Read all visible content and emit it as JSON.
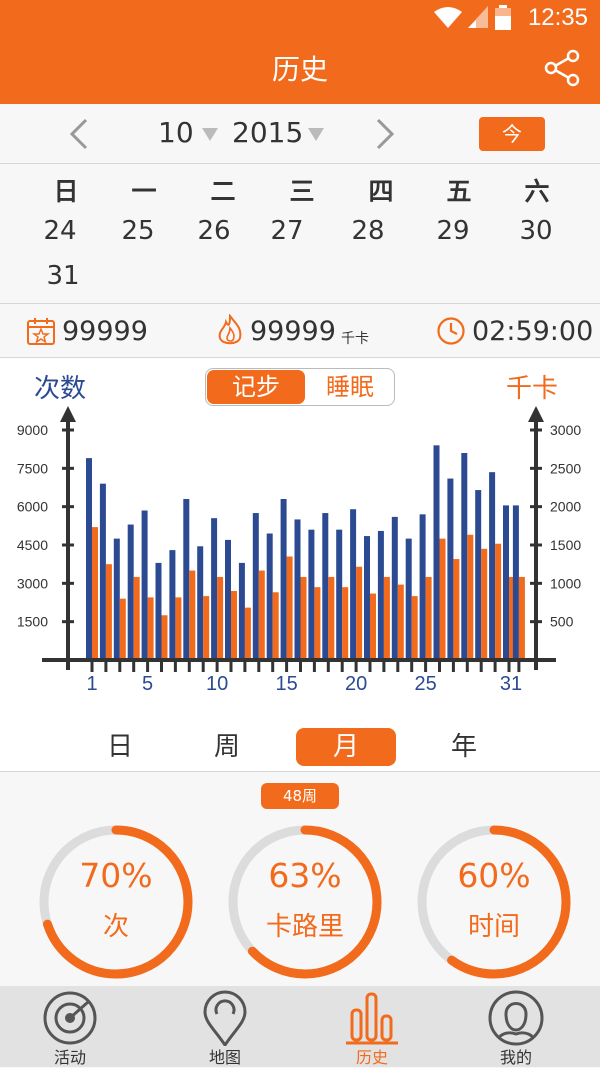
{
  "status_bar": {
    "time": "12:35"
  },
  "header": {
    "title": "历史",
    "share_icon": "share-icon"
  },
  "month_selector": {
    "month": "10",
    "year": "2015",
    "today_label": "今"
  },
  "calendar": {
    "weekdays": [
      "日",
      "一",
      "二",
      "三",
      "四",
      "五",
      "六"
    ],
    "rows": [
      [
        "24",
        "25",
        "26",
        "27",
        "28",
        "29",
        "30"
      ],
      [
        "31"
      ]
    ]
  },
  "stats": {
    "steps": "99999",
    "calories": "99999",
    "calories_unit": "千卡",
    "duration": "02:59:00"
  },
  "chart_header": {
    "left_label": "次数",
    "right_label": "千卡",
    "toggle_on": "记步",
    "toggle_off": "睡眠"
  },
  "chart_data": {
    "type": "bar",
    "x": [
      1,
      2,
      3,
      4,
      5,
      6,
      7,
      8,
      9,
      10,
      11,
      12,
      13,
      14,
      15,
      16,
      17,
      18,
      19,
      20,
      21,
      22,
      23,
      24,
      25,
      26,
      27,
      28,
      29,
      30,
      31
    ],
    "x_tick_labels": [
      "1",
      "5",
      "10",
      "15",
      "20",
      "25",
      "31"
    ],
    "x_tick_values": [
      1,
      5,
      10,
      15,
      20,
      25,
      31
    ],
    "left_axis": {
      "label": "次数",
      "ticks": [
        "1500",
        "3000",
        "4500",
        "6000",
        "7500",
        "9000"
      ],
      "ylim": [
        0,
        9000
      ]
    },
    "right_axis": {
      "label": "千卡",
      "ticks": [
        "500",
        "1000",
        "1500",
        "2000",
        "2500",
        "3000"
      ],
      "ylim": [
        0,
        3000
      ]
    },
    "series": [
      {
        "color": "#2b4a91",
        "axis": "left",
        "values": [
          7900,
          6900,
          4750,
          5300,
          5850,
          3800,
          4300,
          6300,
          4450,
          5550,
          4700,
          3800,
          5750,
          4950,
          6300,
          5500,
          5100,
          5750,
          5100,
          5900,
          4850,
          5050,
          5600,
          4750,
          5700,
          8400,
          7100,
          8100,
          6650,
          7350,
          6050
        ]
      },
      {
        "color": "#f26a1b",
        "axis": "left",
        "values": [
          5200,
          3750,
          2400,
          3250,
          2450,
          1750,
          2450,
          3500,
          2500,
          3250,
          2700,
          2050,
          3500,
          2650,
          4050,
          3250,
          2850,
          3250,
          2850,
          3650,
          2600,
          3250,
          2950,
          2500,
          3250,
          4750,
          3950,
          4900,
          4350,
          4550,
          3250
        ]
      }
    ],
    "series_extra_last": {
      "blue_value": 6050,
      "orange_value": 3250
    },
    "grid": false
  },
  "period_tabs": [
    "日",
    "周",
    "月",
    "年"
  ],
  "period_active": "月",
  "week_badge": "48周",
  "rings": [
    {
      "percent": "70%",
      "label": "次",
      "fraction": 0.7
    },
    {
      "percent": "63%",
      "label": "卡路里",
      "fraction": 0.63
    },
    {
      "percent": "60%",
      "label": "时间",
      "fraction": 0.6
    }
  ],
  "bottom_nav": [
    {
      "label": "活动",
      "icon": "activity-icon"
    },
    {
      "label": "地图",
      "icon": "map-pin-icon"
    },
    {
      "label": "历史",
      "icon": "history-icon"
    },
    {
      "label": "我的",
      "icon": "profile-icon"
    }
  ],
  "colors": {
    "accent": "#f26a1b",
    "blue": "#2b4a91",
    "ring_track": "#dcdcdc"
  }
}
